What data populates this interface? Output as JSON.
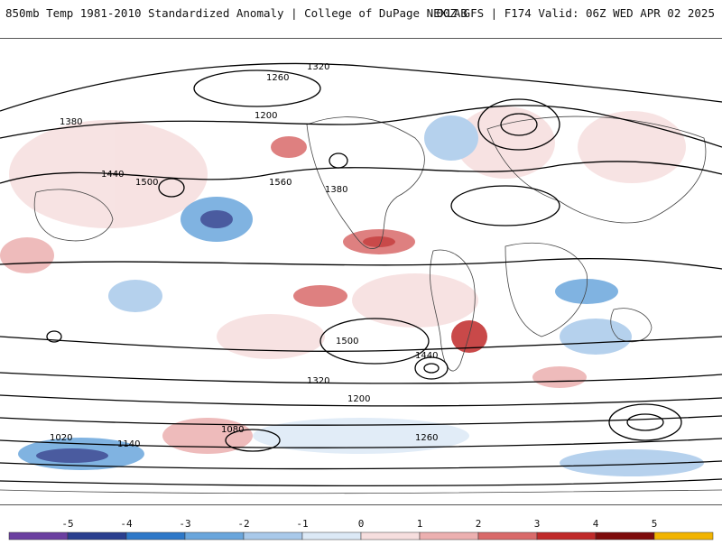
{
  "header": {
    "title": "850mb Temp 1981-2010 Standardized Anomaly | College of DuPage NEXLAB",
    "run_info": "00Z GFS | F174 Valid: 06Z WED APR 02 2025"
  },
  "contour_labels": [
    "1320",
    "1260",
    "1200",
    "1380",
    "1440",
    "1500",
    "1560",
    "1080",
    "1020",
    "1140",
    "1320",
    "1380",
    "1500",
    "1440",
    "1200",
    "1260"
  ],
  "legend": {
    "ticks": [
      "-5",
      "-4",
      "-3",
      "-2",
      "-1",
      "0",
      "1",
      "2",
      "3",
      "4",
      "5"
    ],
    "colors": [
      "#6b3fa0",
      "#2b3f8f",
      "#2e78c8",
      "#6aa6dc",
      "#a9c9ea",
      "#dce9f6",
      "#f6dede",
      "#ecb0b0",
      "#d96a6a",
      "#c02a2a",
      "#7e0c0c",
      "#f2b400"
    ]
  }
}
